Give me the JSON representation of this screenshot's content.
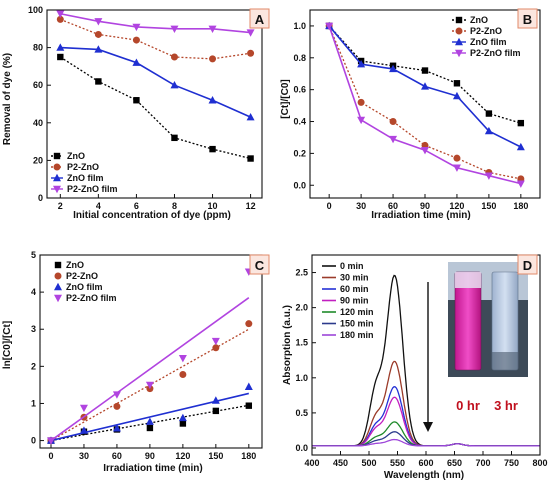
{
  "chart_data": [
    {
      "panel": "A",
      "type": "line",
      "xlabel": "Initial concentration of dye (ppm)",
      "ylabel": "Removal of dye (%)",
      "xlim": [
        1.3,
        12.6
      ],
      "ylim": [
        0,
        100
      ],
      "xticks": [
        2,
        4,
        6,
        8,
        10,
        12
      ],
      "yticks": [
        0,
        20,
        40,
        60,
        80,
        100
      ],
      "legend_position": "bottom-left",
      "series": [
        {
          "name": "ZnO",
          "color": "#000000",
          "dash": "2,2",
          "marker": "square",
          "x": [
            2,
            4,
            6,
            8,
            10,
            12
          ],
          "values": [
            75,
            62,
            52,
            32,
            26,
            21
          ]
        },
        {
          "name": "P2-ZnO",
          "color": "#b5472b",
          "dash": "2,2",
          "marker": "circle",
          "x": [
            2,
            4,
            6,
            8,
            10,
            12
          ],
          "values": [
            95,
            87,
            84,
            75,
            74,
            77
          ]
        },
        {
          "name": "ZnO film",
          "color": "#1f2fd1",
          "dash": "",
          "marker": "triangle-up",
          "x": [
            2,
            4,
            6,
            8,
            10,
            12
          ],
          "values": [
            80,
            79,
            72,
            60,
            52,
            43
          ]
        },
        {
          "name": "P2-ZnO film",
          "color": "#b144e0",
          "dash": "",
          "marker": "triangle-down",
          "x": [
            2,
            4,
            6,
            8,
            10,
            12
          ],
          "values": [
            98,
            94,
            91,
            90,
            90,
            88
          ]
        }
      ]
    },
    {
      "panel": "B",
      "type": "line",
      "xlabel": "Irradiation time (min)",
      "ylabel": "[Ct]/[C0]",
      "xlim": [
        -18,
        198
      ],
      "ylim": [
        -0.08,
        1.1
      ],
      "xticks": [
        0,
        30,
        60,
        90,
        120,
        150,
        180
      ],
      "yticks": [
        0.0,
        0.2,
        0.4,
        0.6,
        0.8,
        1.0
      ],
      "legend_position": "top-right",
      "series": [
        {
          "name": "ZnO",
          "color": "#000000",
          "dash": "2,2",
          "marker": "square",
          "x": [
            0,
            30,
            60,
            90,
            120,
            150,
            180
          ],
          "values": [
            1.0,
            0.78,
            0.75,
            0.72,
            0.64,
            0.45,
            0.39
          ]
        },
        {
          "name": "P2-ZnO",
          "color": "#b5472b",
          "dash": "2,2",
          "marker": "circle",
          "x": [
            0,
            30,
            60,
            90,
            120,
            150,
            180
          ],
          "values": [
            1.0,
            0.52,
            0.4,
            0.25,
            0.17,
            0.08,
            0.04
          ]
        },
        {
          "name": "ZnO film",
          "color": "#1f2fd1",
          "dash": "",
          "marker": "triangle-up",
          "x": [
            0,
            30,
            60,
            90,
            120,
            150,
            180
          ],
          "values": [
            1.0,
            0.76,
            0.73,
            0.62,
            0.56,
            0.34,
            0.24
          ]
        },
        {
          "name": "P2-ZnO film",
          "color": "#b144e0",
          "dash": "",
          "marker": "triangle-down",
          "x": [
            0,
            30,
            60,
            90,
            120,
            150,
            180
          ],
          "values": [
            1.0,
            0.41,
            0.29,
            0.22,
            0.11,
            0.06,
            0.01
          ]
        }
      ]
    },
    {
      "panel": "C",
      "type": "scatter",
      "xlabel": "Irradiation time (min)",
      "ylabel": "ln[C0]/[Ct]",
      "xlim": [
        -10,
        192
      ],
      "ylim": [
        -0.2,
        5
      ],
      "xticks": [
        0,
        30,
        60,
        90,
        120,
        150,
        180
      ],
      "yticks": [
        0,
        1,
        2,
        3,
        4,
        5
      ],
      "legend_position": "top-left",
      "series": [
        {
          "name": "ZnO",
          "color": "#000000",
          "dash": "2,2",
          "marker": "square",
          "x": [
            0,
            30,
            60,
            90,
            120,
            150,
            180
          ],
          "values": [
            0,
            0.24,
            0.3,
            0.34,
            0.46,
            0.8,
            0.94
          ],
          "fit": [
            0,
            0.95
          ]
        },
        {
          "name": "P2-ZnO",
          "color": "#b5472b",
          "dash": "2,2",
          "marker": "circle",
          "x": [
            0,
            30,
            60,
            90,
            120,
            150,
            180
          ],
          "values": [
            0,
            0.63,
            0.92,
            1.4,
            1.78,
            2.5,
            3.15
          ],
          "fit": [
            0,
            3.0
          ]
        },
        {
          "name": "ZnO film",
          "color": "#1f2fd1",
          "dash": "",
          "marker": "triangle-up",
          "x": [
            0,
            30,
            60,
            90,
            120,
            150,
            180
          ],
          "values": [
            0,
            0.27,
            0.33,
            0.51,
            0.61,
            1.08,
            1.45
          ],
          "fit": [
            0,
            1.27
          ]
        },
        {
          "name": "P2-ZnO film",
          "color": "#b144e0",
          "dash": "",
          "marker": "triangle-down",
          "x": [
            0,
            30,
            60,
            90,
            120,
            150,
            180
          ],
          "values": [
            0,
            0.88,
            1.24,
            1.5,
            2.22,
            2.68,
            4.55
          ],
          "fit": [
            0,
            3.85
          ]
        }
      ]
    },
    {
      "panel": "D",
      "type": "line",
      "xlabel": "Wavelength (nm)",
      "ylabel": "Absorption (a.u.)",
      "xlim": [
        400,
        800
      ],
      "ylim": [
        -0.1,
        2.75
      ],
      "xticks": [
        400,
        450,
        500,
        550,
        600,
        650,
        700,
        750,
        800
      ],
      "yticks": [
        0.0,
        0.5,
        1.0,
        1.5,
        2.0,
        2.5
      ],
      "legend_position": "top-left",
      "peak_nm": 545,
      "series": [
        {
          "name": "0 min",
          "color": "#111111",
          "peak": 2.42
        },
        {
          "name": "30 min",
          "color": "#9b3b2a",
          "peak": 1.2
        },
        {
          "name": "60 min",
          "color": "#2431d6",
          "peak": 0.84
        },
        {
          "name": "90 min",
          "color": "#c21fc0",
          "peak": 0.69
        },
        {
          "name": "120 min",
          "color": "#1f8a2a",
          "peak": 0.34
        },
        {
          "name": "150 min",
          "color": "#2b3a8c",
          "peak": 0.2
        },
        {
          "name": "180 min",
          "color": "#9d46d9",
          "peak": 0.09
        }
      ],
      "photo_labels": [
        "0 hr",
        "3 hr"
      ]
    }
  ],
  "panels": {
    "A": {
      "badge": "A"
    },
    "B": {
      "badge": "B"
    },
    "C": {
      "badge": "C"
    },
    "D": {
      "badge": "D"
    }
  }
}
